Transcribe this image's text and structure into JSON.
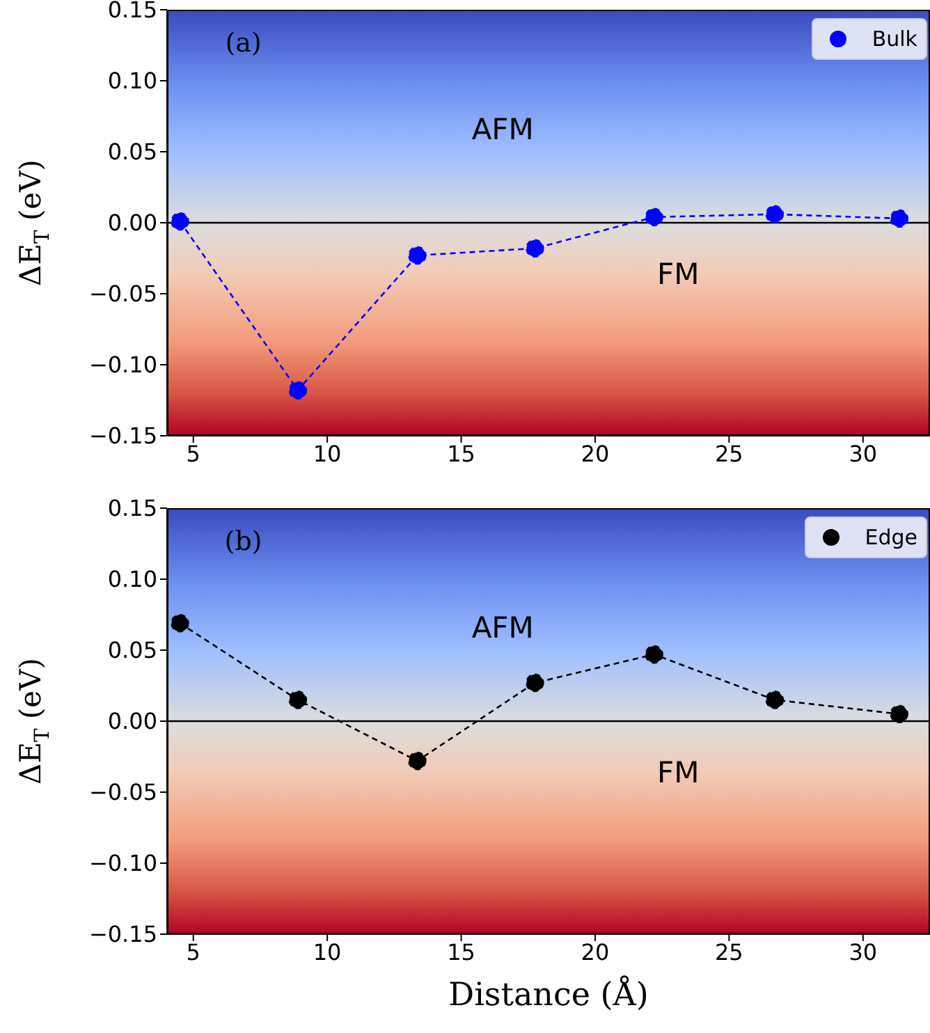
{
  "chart_data": [
    {
      "type": "line",
      "ylabel": "ΔE$_{T}$ (eV)",
      "x": [
        4.5,
        8.9,
        13.36,
        17.75,
        22.2,
        26.7,
        31.35
      ],
      "series": [
        {
          "name": "Bulk",
          "color": "#0000ff",
          "values": [
            0.001,
            -0.118,
            -0.023,
            -0.018,
            0.004,
            0.006,
            0.003
          ]
        }
      ],
      "xlim": [
        4.02,
        32.5
      ],
      "xticks": [
        5,
        10,
        15,
        20,
        25,
        30
      ],
      "ylim": [
        -0.15,
        0.15
      ],
      "yticks": [
        {
          "value": -0.15,
          "label": "−0.15"
        },
        {
          "value": -0.1,
          "label": "−0.10"
        },
        {
          "value": -0.05,
          "label": "−0.05"
        },
        {
          "value": 0,
          "label": "0.00"
        },
        {
          "value": 0.05,
          "label": "0.05"
        },
        {
          "value": 0.1,
          "label": "0.10"
        },
        {
          "value": 0.15,
          "label": "0.15"
        }
      ],
      "ref_lines": [
        {
          "axis": "y",
          "value": 0,
          "color": "#000000"
        }
      ],
      "annotations": [
        "(a)",
        "AFM",
        "FM"
      ],
      "legend": "top right",
      "marker": "circle",
      "line_style": "dashed",
      "grid": false
    },
    {
      "type": "line",
      "xlabel": "Distance (Å)",
      "ylabel": "ΔE$_{T}$ (eV)",
      "x": [
        4.5,
        8.9,
        13.36,
        17.75,
        22.2,
        26.7,
        31.35
      ],
      "series": [
        {
          "name": "Edge",
          "color": "#000000",
          "values": [
            0.069,
            0.015,
            -0.028,
            0.027,
            0.047,
            0.015,
            0.005
          ]
        }
      ],
      "xlim": [
        4.02,
        32.5
      ],
      "xticks": [
        5,
        10,
        15,
        20,
        25,
        30
      ],
      "ylim": [
        -0.15,
        0.15
      ],
      "yticks": [
        {
          "value": -0.15,
          "label": "−0.15"
        },
        {
          "value": -0.1,
          "label": "−0.10"
        },
        {
          "value": -0.05,
          "label": "−0.05"
        },
        {
          "value": 0,
          "label": "0.00"
        },
        {
          "value": 0.05,
          "label": "0.05"
        },
        {
          "value": 0.1,
          "label": "0.10"
        },
        {
          "value": 0.15,
          "label": "0.15"
        }
      ],
      "ref_lines": [
        {
          "axis": "y",
          "value": 0,
          "color": "#000000"
        }
      ],
      "annotations": [
        "(b)",
        "AFM",
        "FM"
      ],
      "legend": "top right",
      "marker": "circle",
      "line_style": "dashed",
      "grid": false
    }
  ]
}
